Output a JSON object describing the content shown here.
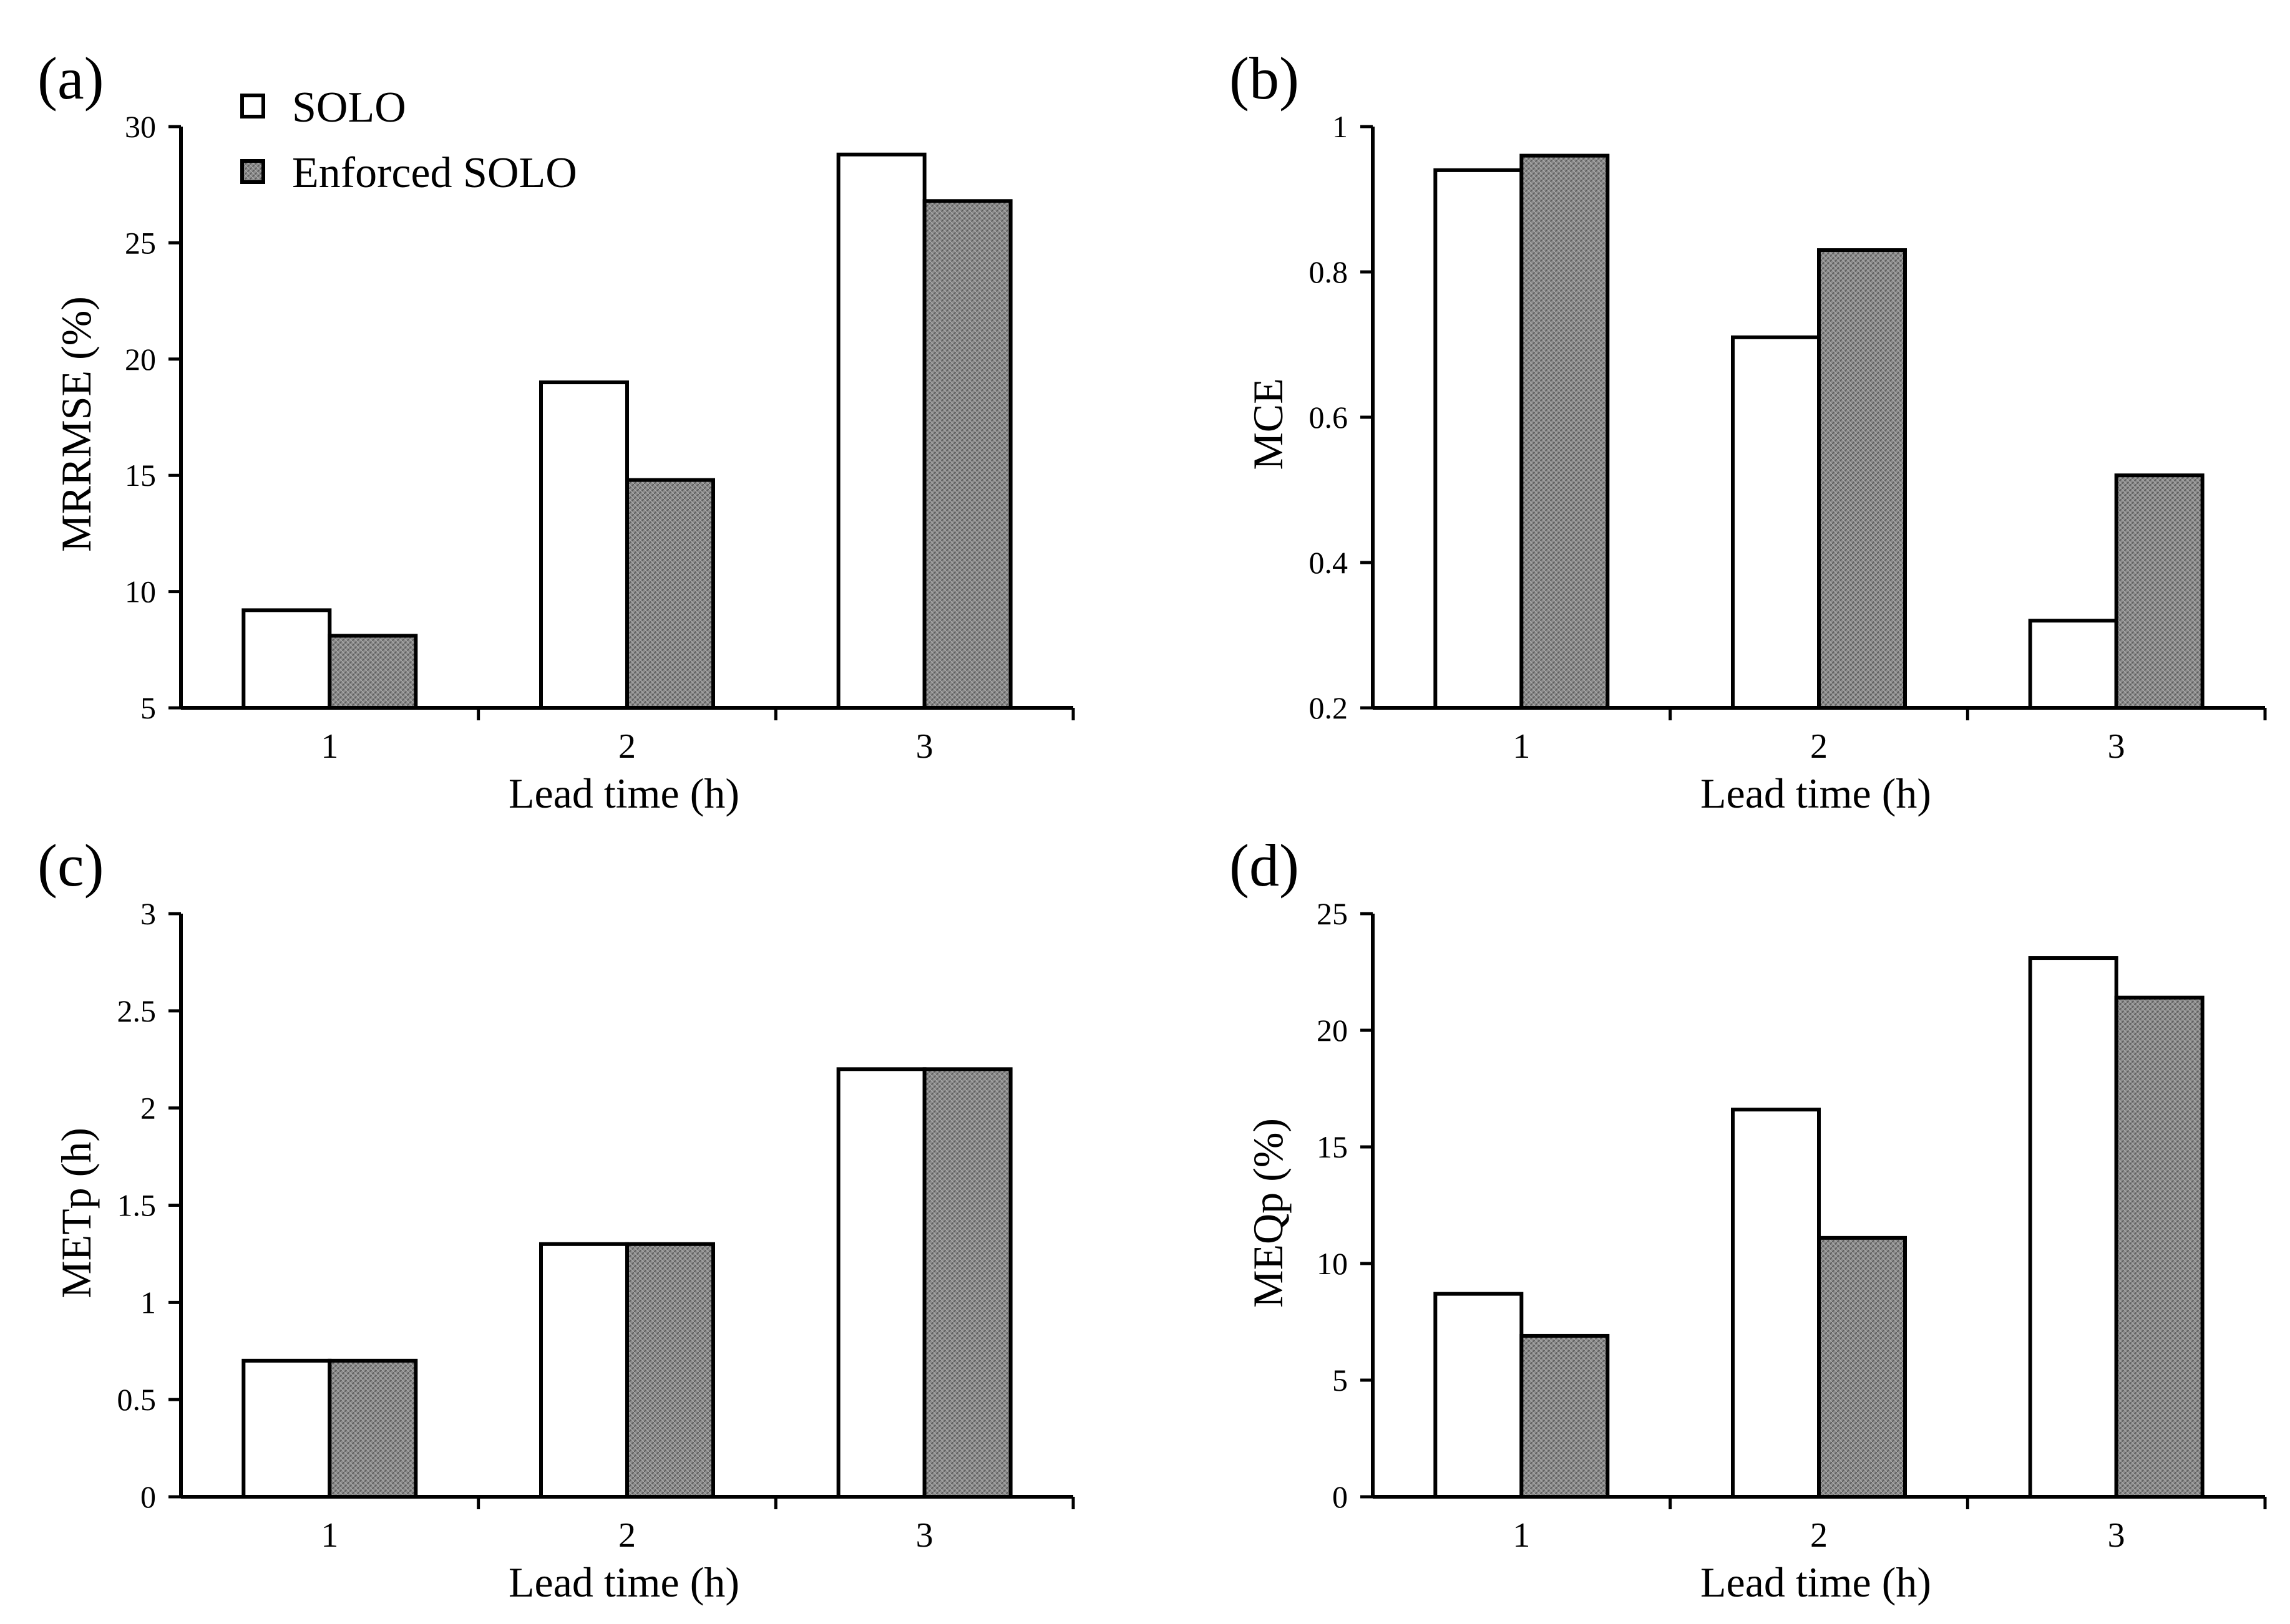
{
  "legend": {
    "items": [
      {
        "name": "SOLO",
        "style": "white"
      },
      {
        "name": "Enforced SOLO",
        "style": "hatched-gray"
      }
    ]
  },
  "colors": {
    "solo_fill": "#ffffff",
    "enforced_fill": "#8c8c8c",
    "stroke": "#000000"
  },
  "chart_data": [
    {
      "type": "bar",
      "panel_label": "(a)",
      "categories": [
        "1",
        "2",
        "3"
      ],
      "series": [
        {
          "name": "SOLO",
          "values": [
            9.2,
            19.0,
            28.8
          ]
        },
        {
          "name": "Enforced SOLO",
          "values": [
            8.1,
            14.8,
            26.8
          ]
        }
      ],
      "xlabel": "Lead time (h)",
      "ylabel": "MRRMSE (%)",
      "ylim": [
        5,
        30
      ],
      "yticks": [
        "5",
        "10",
        "15",
        "20",
        "25",
        "30"
      ],
      "ytick_values": [
        5,
        10,
        15,
        20,
        25,
        30
      ],
      "grid": false,
      "legend_position": "top-left"
    },
    {
      "type": "bar",
      "panel_label": "(b)",
      "categories": [
        "1",
        "2",
        "3"
      ],
      "series": [
        {
          "name": "SOLO",
          "values": [
            0.94,
            0.71,
            0.32
          ]
        },
        {
          "name": "Enforced SOLO",
          "values": [
            0.96,
            0.83,
            0.52
          ]
        }
      ],
      "xlabel": "Lead time (h)",
      "ylabel": "MCE",
      "ylim": [
        0.2,
        1
      ],
      "yticks": [
        "0.2",
        "0.4",
        "0.6",
        "0.8",
        "1"
      ],
      "ytick_values": [
        0.2,
        0.4,
        0.6,
        0.8,
        1
      ],
      "grid": false
    },
    {
      "type": "bar",
      "panel_label": "(c)",
      "categories": [
        "1",
        "2",
        "3"
      ],
      "series": [
        {
          "name": "SOLO",
          "values": [
            0.7,
            1.3,
            2.2
          ]
        },
        {
          "name": "Enforced SOLO",
          "values": [
            0.7,
            1.3,
            2.2
          ]
        }
      ],
      "xlabel": "Lead time (h)",
      "ylabel": "METp (h)",
      "ylim": [
        0,
        3
      ],
      "yticks": [
        "0",
        "0.5",
        "1",
        "1.5",
        "2",
        "2.5",
        "3"
      ],
      "ytick_values": [
        0,
        0.5,
        1,
        1.5,
        2,
        2.5,
        3
      ],
      "grid": false
    },
    {
      "type": "bar",
      "panel_label": "(d)",
      "categories": [
        "1",
        "2",
        "3"
      ],
      "series": [
        {
          "name": "SOLO",
          "values": [
            8.7,
            16.6,
            23.1
          ]
        },
        {
          "name": "Enforced SOLO",
          "values": [
            6.9,
            11.1,
            21.4
          ]
        }
      ],
      "xlabel": "Lead time (h)",
      "ylabel": "MEQp (%)",
      "ylim": [
        0,
        25
      ],
      "yticks": [
        "0",
        "5",
        "10",
        "15",
        "20",
        "25"
      ],
      "ytick_values": [
        0,
        5,
        10,
        15,
        20,
        25
      ],
      "grid": false
    }
  ]
}
